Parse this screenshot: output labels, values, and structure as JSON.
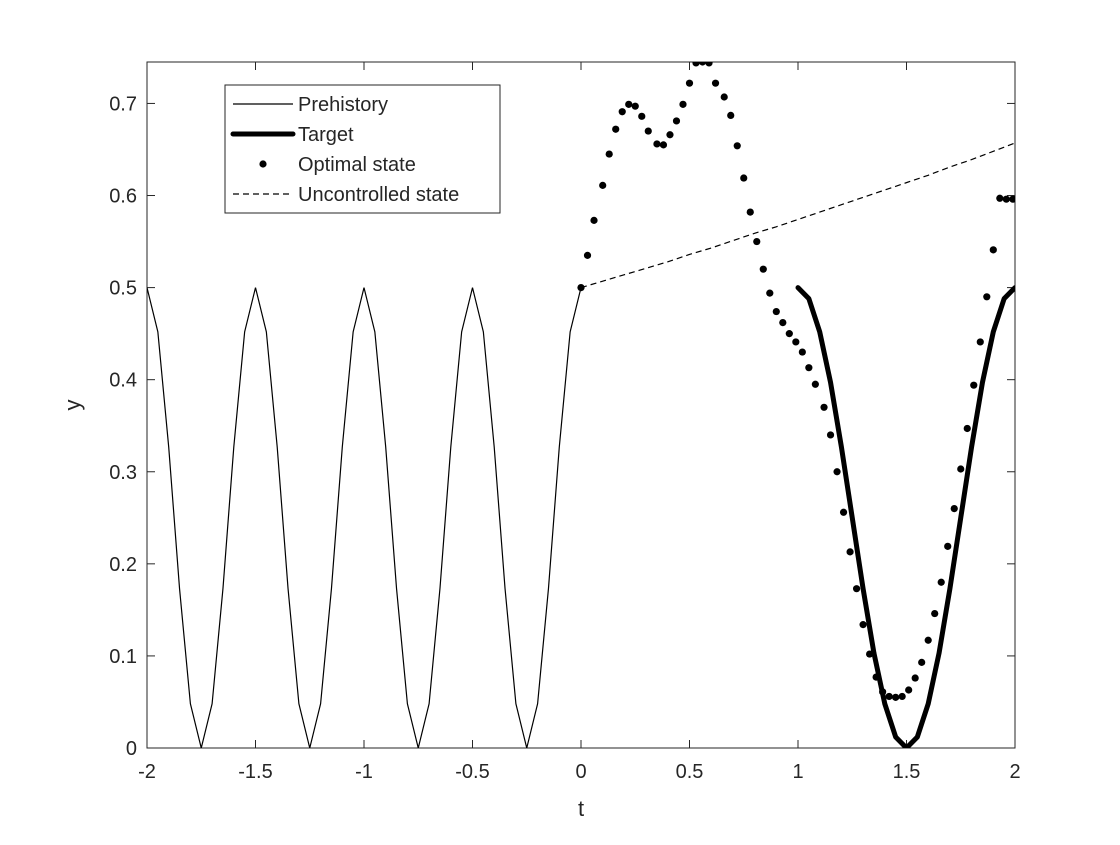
{
  "chart_data": {
    "type": "line",
    "title": "",
    "xlabel": "t",
    "ylabel": "y",
    "xlim": [
      -2,
      2
    ],
    "ylim": [
      0,
      0.745
    ],
    "xticks": [
      -2,
      -1.5,
      -1,
      -0.5,
      0,
      0.5,
      1,
      1.5,
      2
    ],
    "xtick_labels": [
      "-2",
      "-1.5",
      "-1",
      "-0.5",
      "0",
      "0.5",
      "1",
      "1.5",
      "2"
    ],
    "yticks": [
      0,
      0.1,
      0.2,
      0.3,
      0.4,
      0.5,
      0.6,
      0.7
    ],
    "ytick_labels": [
      "0",
      "0.1",
      "0.2",
      "0.3",
      "0.4",
      "0.5",
      "0.6",
      "0.7"
    ],
    "grid": false,
    "legend_position": "top-left",
    "colors": {
      "line": "#000000",
      "axes": "#262626"
    },
    "series": [
      {
        "name": "Prehistory",
        "style": "thin-solid",
        "x": [
          -2.0,
          -1.95,
          -1.9,
          -1.85,
          -1.8,
          -1.75,
          -1.7,
          -1.65,
          -1.6,
          -1.55,
          -1.5,
          -1.45,
          -1.4,
          -1.35,
          -1.3,
          -1.25,
          -1.2,
          -1.15,
          -1.1,
          -1.05,
          -1.0,
          -0.95,
          -0.9,
          -0.85,
          -0.8,
          -0.75,
          -0.7,
          -0.65,
          -0.6,
          -0.55,
          -0.5,
          -0.45,
          -0.4,
          -0.35,
          -0.3,
          -0.25,
          -0.2,
          -0.15,
          -0.1,
          -0.05,
          0.0
        ],
        "y": [
          0.5,
          0.452,
          0.327,
          0.173,
          0.048,
          0.0,
          0.048,
          0.173,
          0.327,
          0.452,
          0.5,
          0.452,
          0.327,
          0.173,
          0.048,
          0.0,
          0.048,
          0.173,
          0.327,
          0.452,
          0.5,
          0.452,
          0.327,
          0.173,
          0.048,
          0.0,
          0.048,
          0.173,
          0.327,
          0.452,
          0.5,
          0.452,
          0.327,
          0.173,
          0.048,
          0.0,
          0.048,
          0.173,
          0.327,
          0.452,
          0.5
        ]
      },
      {
        "name": "Target",
        "style": "thick-solid",
        "x": [
          1.0,
          1.05,
          1.1,
          1.15,
          1.2,
          1.25,
          1.3,
          1.35,
          1.4,
          1.45,
          1.5,
          1.55,
          1.6,
          1.65,
          1.7,
          1.75,
          1.8,
          1.85,
          1.9,
          1.95,
          2.0
        ],
        "y": [
          0.5,
          0.488,
          0.452,
          0.397,
          0.327,
          0.25,
          0.173,
          0.103,
          0.048,
          0.012,
          0.0,
          0.012,
          0.048,
          0.103,
          0.173,
          0.25,
          0.327,
          0.397,
          0.452,
          0.488,
          0.5
        ]
      },
      {
        "name": "Optimal state",
        "style": "dots",
        "x": [
          0.0,
          0.03,
          0.06,
          0.1,
          0.13,
          0.16,
          0.19,
          0.22,
          0.25,
          0.28,
          0.31,
          0.35,
          0.38,
          0.41,
          0.44,
          0.47,
          0.5,
          0.53,
          0.56,
          0.59,
          0.62,
          0.66,
          0.69,
          0.72,
          0.75,
          0.78,
          0.81,
          0.84,
          0.87,
          0.9,
          0.93,
          0.96,
          0.99,
          1.02,
          1.05,
          1.08,
          1.12,
          1.15,
          1.18,
          1.21,
          1.24,
          1.27,
          1.3,
          1.33,
          1.36,
          1.39,
          1.42,
          1.45,
          1.48,
          1.51,
          1.54,
          1.57,
          1.6,
          1.63,
          1.66,
          1.69,
          1.72,
          1.75,
          1.78,
          1.81,
          1.84,
          1.87,
          1.9,
          1.93,
          1.96,
          1.99
        ],
        "y": [
          0.5,
          0.535,
          0.573,
          0.611,
          0.645,
          0.672,
          0.691,
          0.699,
          0.697,
          0.686,
          0.67,
          0.656,
          0.655,
          0.666,
          0.681,
          0.699,
          0.722,
          0.744,
          0.745,
          0.744,
          0.722,
          0.707,
          0.687,
          0.654,
          0.619,
          0.582,
          0.55,
          0.52,
          0.494,
          0.474,
          0.462,
          0.45,
          0.441,
          0.43,
          0.413,
          0.395,
          0.37,
          0.34,
          0.3,
          0.256,
          0.213,
          0.173,
          0.134,
          0.102,
          0.077,
          0.061,
          0.056,
          0.055,
          0.056,
          0.063,
          0.076,
          0.093,
          0.117,
          0.146,
          0.18,
          0.219,
          0.26,
          0.303,
          0.347,
          0.394,
          0.441,
          0.49,
          0.541,
          0.597,
          0.596,
          0.596
        ]
      },
      {
        "name": "Uncontrolled state",
        "style": "dashed",
        "x": [
          0.0,
          0.1,
          0.2,
          0.3,
          0.4,
          0.5,
          0.6,
          0.7,
          0.8,
          0.9,
          1.0,
          1.1,
          1.2,
          1.3,
          1.4,
          1.5,
          1.6,
          1.7,
          1.8,
          1.9,
          2.0
        ],
        "y": [
          0.5,
          0.507,
          0.514,
          0.521,
          0.528,
          0.536,
          0.543,
          0.551,
          0.559,
          0.566,
          0.574,
          0.582,
          0.59,
          0.598,
          0.606,
          0.614,
          0.622,
          0.631,
          0.639,
          0.648,
          0.657
        ]
      }
    ]
  }
}
